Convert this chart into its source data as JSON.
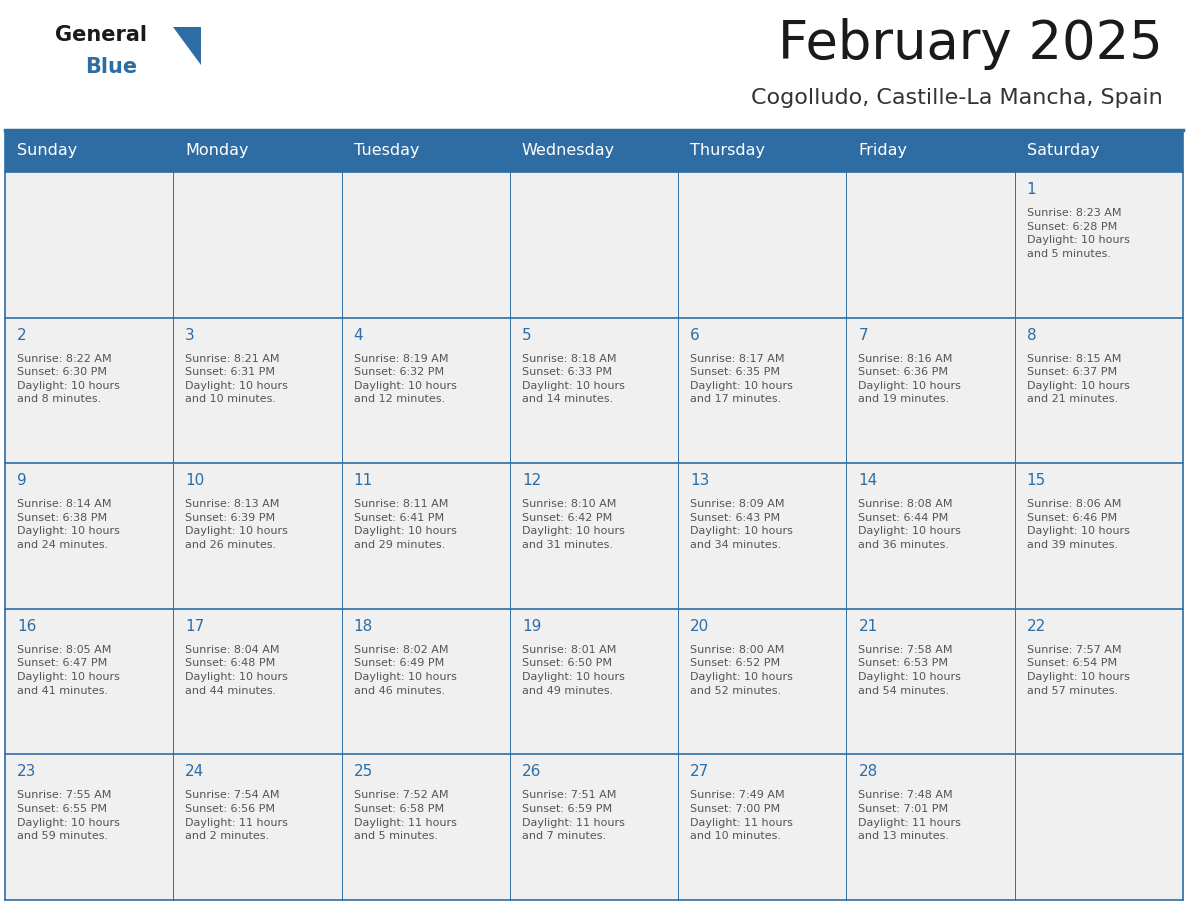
{
  "title": "February 2025",
  "subtitle": "Cogolludo, Castille-La Mancha, Spain",
  "days_of_week": [
    "Sunday",
    "Monday",
    "Tuesday",
    "Wednesday",
    "Thursday",
    "Friday",
    "Saturday"
  ],
  "header_bg": "#2E6DA4",
  "header_text": "#FFFFFF",
  "cell_bg": "#F0F0F0",
  "border_color": "#2E6DA4",
  "day_number_color": "#2E6DA4",
  "cell_text_color": "#555555",
  "title_color": "#1a1a1a",
  "subtitle_color": "#333333",
  "logo_general_color": "#1a1a1a",
  "logo_blue_color": "#2E6DA4",
  "logo_triangle_color": "#2E6DA4",
  "calendar_data": [
    [
      {
        "day": null,
        "info": ""
      },
      {
        "day": null,
        "info": ""
      },
      {
        "day": null,
        "info": ""
      },
      {
        "day": null,
        "info": ""
      },
      {
        "day": null,
        "info": ""
      },
      {
        "day": null,
        "info": ""
      },
      {
        "day": 1,
        "info": "Sunrise: 8:23 AM\nSunset: 6:28 PM\nDaylight: 10 hours\nand 5 minutes."
      }
    ],
    [
      {
        "day": 2,
        "info": "Sunrise: 8:22 AM\nSunset: 6:30 PM\nDaylight: 10 hours\nand 8 minutes."
      },
      {
        "day": 3,
        "info": "Sunrise: 8:21 AM\nSunset: 6:31 PM\nDaylight: 10 hours\nand 10 minutes."
      },
      {
        "day": 4,
        "info": "Sunrise: 8:19 AM\nSunset: 6:32 PM\nDaylight: 10 hours\nand 12 minutes."
      },
      {
        "day": 5,
        "info": "Sunrise: 8:18 AM\nSunset: 6:33 PM\nDaylight: 10 hours\nand 14 minutes."
      },
      {
        "day": 6,
        "info": "Sunrise: 8:17 AM\nSunset: 6:35 PM\nDaylight: 10 hours\nand 17 minutes."
      },
      {
        "day": 7,
        "info": "Sunrise: 8:16 AM\nSunset: 6:36 PM\nDaylight: 10 hours\nand 19 minutes."
      },
      {
        "day": 8,
        "info": "Sunrise: 8:15 AM\nSunset: 6:37 PM\nDaylight: 10 hours\nand 21 minutes."
      }
    ],
    [
      {
        "day": 9,
        "info": "Sunrise: 8:14 AM\nSunset: 6:38 PM\nDaylight: 10 hours\nand 24 minutes."
      },
      {
        "day": 10,
        "info": "Sunrise: 8:13 AM\nSunset: 6:39 PM\nDaylight: 10 hours\nand 26 minutes."
      },
      {
        "day": 11,
        "info": "Sunrise: 8:11 AM\nSunset: 6:41 PM\nDaylight: 10 hours\nand 29 minutes."
      },
      {
        "day": 12,
        "info": "Sunrise: 8:10 AM\nSunset: 6:42 PM\nDaylight: 10 hours\nand 31 minutes."
      },
      {
        "day": 13,
        "info": "Sunrise: 8:09 AM\nSunset: 6:43 PM\nDaylight: 10 hours\nand 34 minutes."
      },
      {
        "day": 14,
        "info": "Sunrise: 8:08 AM\nSunset: 6:44 PM\nDaylight: 10 hours\nand 36 minutes."
      },
      {
        "day": 15,
        "info": "Sunrise: 8:06 AM\nSunset: 6:46 PM\nDaylight: 10 hours\nand 39 minutes."
      }
    ],
    [
      {
        "day": 16,
        "info": "Sunrise: 8:05 AM\nSunset: 6:47 PM\nDaylight: 10 hours\nand 41 minutes."
      },
      {
        "day": 17,
        "info": "Sunrise: 8:04 AM\nSunset: 6:48 PM\nDaylight: 10 hours\nand 44 minutes."
      },
      {
        "day": 18,
        "info": "Sunrise: 8:02 AM\nSunset: 6:49 PM\nDaylight: 10 hours\nand 46 minutes."
      },
      {
        "day": 19,
        "info": "Sunrise: 8:01 AM\nSunset: 6:50 PM\nDaylight: 10 hours\nand 49 minutes."
      },
      {
        "day": 20,
        "info": "Sunrise: 8:00 AM\nSunset: 6:52 PM\nDaylight: 10 hours\nand 52 minutes."
      },
      {
        "day": 21,
        "info": "Sunrise: 7:58 AM\nSunset: 6:53 PM\nDaylight: 10 hours\nand 54 minutes."
      },
      {
        "day": 22,
        "info": "Sunrise: 7:57 AM\nSunset: 6:54 PM\nDaylight: 10 hours\nand 57 minutes."
      }
    ],
    [
      {
        "day": 23,
        "info": "Sunrise: 7:55 AM\nSunset: 6:55 PM\nDaylight: 10 hours\nand 59 minutes."
      },
      {
        "day": 24,
        "info": "Sunrise: 7:54 AM\nSunset: 6:56 PM\nDaylight: 11 hours\nand 2 minutes."
      },
      {
        "day": 25,
        "info": "Sunrise: 7:52 AM\nSunset: 6:58 PM\nDaylight: 11 hours\nand 5 minutes."
      },
      {
        "day": 26,
        "info": "Sunrise: 7:51 AM\nSunset: 6:59 PM\nDaylight: 11 hours\nand 7 minutes."
      },
      {
        "day": 27,
        "info": "Sunrise: 7:49 AM\nSunset: 7:00 PM\nDaylight: 11 hours\nand 10 minutes."
      },
      {
        "day": 28,
        "info": "Sunrise: 7:48 AM\nSunset: 7:01 PM\nDaylight: 11 hours\nand 13 minutes."
      },
      {
        "day": null,
        "info": ""
      }
    ]
  ]
}
